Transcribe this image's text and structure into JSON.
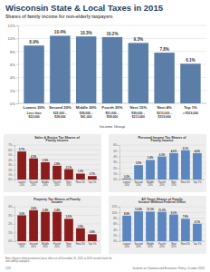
{
  "chart_data": [
    {
      "type": "bar",
      "title": "Wisconsin State & Local Taxes in 2015",
      "subtitle": "Shares of family income for non-elderly taxpayers",
      "x_label": "Income Group",
      "categories": [
        "Lowest 20%",
        "Second 20%",
        "Middle 20%",
        "Fourth 20%",
        "Next 15%",
        "Next 4%",
        "Top 1%"
      ],
      "sublabels": [
        "Less than $22,000",
        "$22,000 – $38,000",
        "$38,000 – $61,000",
        "$61,000 – $99,000",
        "$99,000 – $213,000",
        "$213,000 – $519,000",
        "> $519,000"
      ],
      "values": [
        8.9,
        10.4,
        10.3,
        10.2,
        9.3,
        7.8,
        6.1
      ],
      "value_labels": [
        "8.9%",
        "10.4%",
        "10.3%",
        "10.2%",
        "9.3%",
        "7.8%",
        "6.1%"
      ],
      "color": "#5a7ea8",
      "data_labels": true,
      "grid": true,
      "ylim": [
        0,
        12
      ],
      "yticks": [
        {
          "value": 0,
          "label": "0%"
        },
        {
          "value": 2,
          "label": "2%"
        },
        {
          "value": 4,
          "label": "4%"
        },
        {
          "value": 6,
          "label": "6%"
        },
        {
          "value": 8,
          "label": "8%"
        },
        {
          "value": 10,
          "label": "10%"
        },
        {
          "value": 12,
          "label": "12%"
        }
      ]
    },
    {
      "type": "bar",
      "title": "Sales & Excise Tax Shares of Family Income",
      "categories": [
        "Lowest 20%",
        "Second 20%",
        "Middle 20%",
        "Fourth 20%",
        "Next 15%",
        "Next 4%",
        "Top 1%"
      ],
      "values": [
        5.7,
        4.3,
        3.5,
        2.8,
        2.1,
        1.2,
        0.7
      ],
      "value_labels": [
        "5.7%",
        "4.3%",
        "3.5%",
        "2.8%",
        "2.1%",
        "1.2%",
        "0.7%"
      ],
      "color": "#8b1c1c",
      "data_labels": true,
      "grid": true,
      "ylim": [
        0,
        7
      ],
      "yticks": [
        {
          "value": 0,
          "label": "0%"
        },
        {
          "value": 1,
          "label": "1%"
        },
        {
          "value": 2,
          "label": "2%"
        },
        {
          "value": 3,
          "label": "3%"
        },
        {
          "value": 4,
          "label": "4%"
        },
        {
          "value": 5,
          "label": "5%"
        },
        {
          "value": 6,
          "label": "6%"
        },
        {
          "value": 7,
          "label": "7%"
        }
      ]
    },
    {
      "type": "bar",
      "title": "Personal Income Tax Shares of Family Income",
      "categories": [
        "Lowest 20%",
        "Second 20%",
        "Middle 20%",
        "Fourth 20%",
        "Next 15%",
        "Next 4%",
        "Top 1%"
      ],
      "values": [
        0.2,
        2.5,
        3.4,
        4.0,
        4.6,
        5.1,
        4.6
      ],
      "value_labels": [
        "0.2%",
        "2.5%",
        "3.4%",
        "4.0%",
        "4.6%",
        "5.1%",
        "4.6%"
      ],
      "color": "#5b86c0",
      "data_labels": true,
      "grid": true,
      "ylim": [
        0,
        6
      ],
      "yticks": [
        {
          "value": 0,
          "label": "0%"
        },
        {
          "value": 1,
          "label": "1%"
        },
        {
          "value": 2,
          "label": "2%"
        },
        {
          "value": 3,
          "label": "3%"
        },
        {
          "value": 4,
          "label": "4%"
        },
        {
          "value": 5,
          "label": "5%"
        },
        {
          "value": 6,
          "label": "6%"
        }
      ]
    },
    {
      "type": "bar",
      "title": "Property Tax Shares of Family Income",
      "categories": [
        "Lowest 20%",
        "Second 20%",
        "Middle 20%",
        "Fourth 20%",
        "Next 15%",
        "Next 4%",
        "Top 1%"
      ],
      "values": [
        3.0,
        3.6,
        3.4,
        3.4,
        2.6,
        1.5,
        0.8
      ],
      "value_labels": [
        "3.0%",
        "3.6%",
        "3.4%",
        "3.4%",
        "2.6%",
        "1.5%",
        "0.8%"
      ],
      "color": "#8b1c1c",
      "data_labels": true,
      "grid": true,
      "ylim": [
        0,
        4
      ],
      "yticks": [
        {
          "value": 0,
          "label": "0%"
        },
        {
          "value": 1,
          "label": "1%"
        },
        {
          "value": 2,
          "label": "2%"
        },
        {
          "value": 3,
          "label": "3%"
        },
        {
          "value": 4,
          "label": "4%"
        }
      ]
    },
    {
      "type": "bar",
      "title": "All Taxes Shares of Family Income Without Federal Offset",
      "categories": [
        "Lowest 20%",
        "Second 20%",
        "Middle 20%",
        "Fourth 20%",
        "Next 15%",
        "Next 4%",
        "Top 1%"
      ],
      "values": [
        8.9,
        10.4,
        10.3,
        10.2,
        9.3,
        7.8,
        6.1
      ],
      "value_labels": [
        "8.9%",
        "10.4%",
        "10.3%",
        "10.2%",
        "9.3%",
        "7.8%",
        "6.1%"
      ],
      "color": "#5b86c0",
      "data_labels": true,
      "grid": true,
      "ylim": [
        0,
        12
      ],
      "yticks": [
        {
          "value": 0,
          "label": "0%"
        },
        {
          "value": 2,
          "label": "2%"
        },
        {
          "value": 4,
          "label": "4%"
        },
        {
          "value": 6,
          "label": "6%"
        },
        {
          "value": 8,
          "label": "8%"
        },
        {
          "value": 10,
          "label": "10%"
        },
        {
          "value": 12,
          "label": "12%"
        }
      ]
    }
  ],
  "footer": {
    "note": "Note: Figures show permanent law in effect as of December 31, 2015 at 2015 income levels for non-elderly taxpayers.",
    "page_number": "122",
    "source": "Institute on Taxation and Economic Policy, October 2015"
  }
}
